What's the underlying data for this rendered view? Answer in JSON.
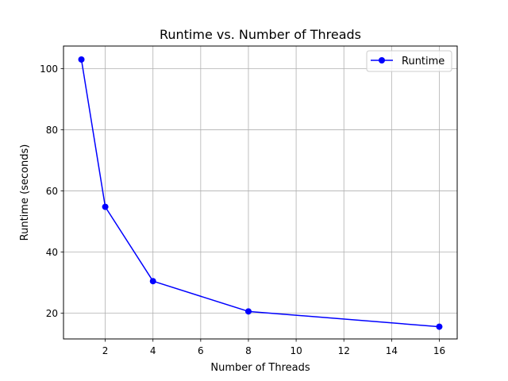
{
  "chart_data": {
    "type": "line",
    "title": "Runtime vs. Number of Threads",
    "xlabel": "Number of Threads",
    "ylabel": "Runtime (seconds)",
    "x": [
      1,
      2,
      4,
      8,
      16
    ],
    "series": [
      {
        "name": "Runtime",
        "values": [
          103.0,
          54.8,
          30.5,
          20.6,
          15.6
        ],
        "color": "#0000ff",
        "marker": "circle"
      }
    ],
    "xlim": [
      0.25,
      16.75
    ],
    "ylim": [
      11.6,
      107.4
    ],
    "xticks": [
      2,
      4,
      6,
      8,
      10,
      12,
      14,
      16
    ],
    "yticks": [
      20,
      40,
      60,
      80,
      100
    ],
    "grid": true,
    "legend": {
      "position": "upper right",
      "entries": [
        "Runtime"
      ]
    }
  }
}
